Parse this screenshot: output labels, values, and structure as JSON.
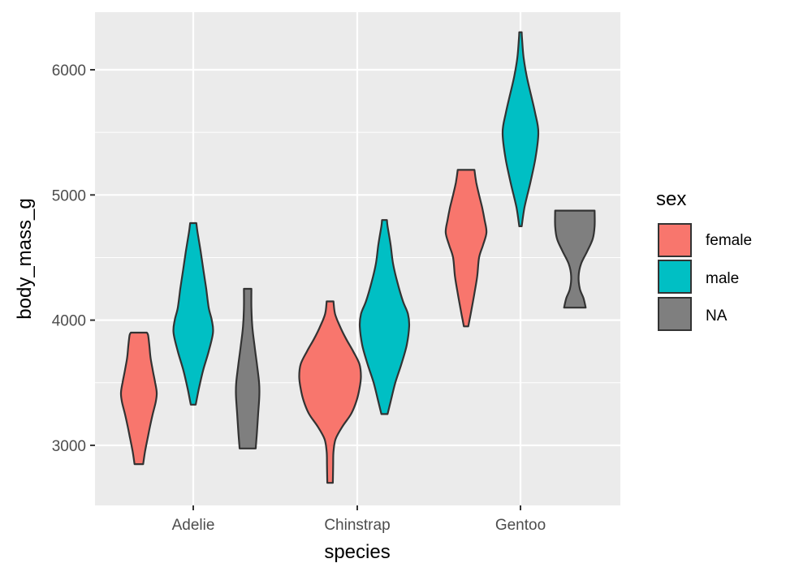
{
  "chart_data": {
    "type": "violin",
    "xlabel": "species",
    "ylabel": "body_mass_g",
    "categories": [
      "Adelie",
      "Chinstrap",
      "Gentoo"
    ],
    "ylim": [
      2520,
      6460
    ],
    "yticks": [
      3000,
      4000,
      5000,
      6000
    ],
    "grid": true,
    "legend": {
      "title": "sex",
      "position": "right",
      "entries": [
        {
          "label": "female",
          "color": "#F8766D"
        },
        {
          "label": "male",
          "color": "#00BFC4"
        },
        {
          "label": "NA",
          "color": "#7F7F7F"
        }
      ]
    },
    "series": [
      {
        "name": "female",
        "color": "#F8766D",
        "violins": [
          {
            "category": "Adelie",
            "min": 2850,
            "max": 3900,
            "profile": [
              [
                2850,
                0.14
              ],
              [
                2950,
                0.2
              ],
              [
                3050,
                0.28
              ],
              [
                3150,
                0.36
              ],
              [
                3250,
                0.45
              ],
              [
                3350,
                0.55
              ],
              [
                3420,
                0.58
              ],
              [
                3500,
                0.53
              ],
              [
                3600,
                0.45
              ],
              [
                3700,
                0.38
              ],
              [
                3800,
                0.34
              ],
              [
                3880,
                0.3
              ],
              [
                3900,
                0.26
              ]
            ]
          },
          {
            "category": "Chinstrap",
            "min": 2700,
            "max": 4150,
            "profile": [
              [
                2700,
                0.09
              ],
              [
                2850,
                0.1
              ],
              [
                2950,
                0.11
              ],
              [
                3050,
                0.18
              ],
              [
                3150,
                0.4
              ],
              [
                3250,
                0.68
              ],
              [
                3350,
                0.85
              ],
              [
                3450,
                0.95
              ],
              [
                3550,
                1.0
              ],
              [
                3650,
                0.95
              ],
              [
                3750,
                0.75
              ],
              [
                3850,
                0.52
              ],
              [
                3950,
                0.32
              ],
              [
                4050,
                0.16
              ],
              [
                4150,
                0.11
              ]
            ]
          },
          {
            "category": "Gentoo",
            "min": 3950,
            "max": 5200,
            "profile": [
              [
                3950,
                0.07
              ],
              [
                4050,
                0.15
              ],
              [
                4200,
                0.26
              ],
              [
                4350,
                0.36
              ],
              [
                4500,
                0.42
              ],
              [
                4600,
                0.55
              ],
              [
                4700,
                0.66
              ],
              [
                4800,
                0.6
              ],
              [
                4900,
                0.52
              ],
              [
                5000,
                0.42
              ],
              [
                5100,
                0.33
              ],
              [
                5200,
                0.27
              ]
            ]
          }
        ]
      },
      {
        "name": "male",
        "color": "#00BFC4",
        "violins": [
          {
            "category": "Adelie",
            "min": 3325,
            "max": 4775,
            "profile": [
              [
                3325,
                0.08
              ],
              [
                3450,
                0.18
              ],
              [
                3600,
                0.32
              ],
              [
                3750,
                0.5
              ],
              [
                3900,
                0.64
              ],
              [
                4000,
                0.6
              ],
              [
                4100,
                0.5
              ],
              [
                4250,
                0.42
              ],
              [
                4400,
                0.33
              ],
              [
                4550,
                0.24
              ],
              [
                4700,
                0.14
              ],
              [
                4775,
                0.1
              ]
            ]
          },
          {
            "category": "Chinstrap",
            "min": 3250,
            "max": 4800,
            "profile": [
              [
                3250,
                0.1
              ],
              [
                3350,
                0.2
              ],
              [
                3500,
                0.35
              ],
              [
                3650,
                0.55
              ],
              [
                3800,
                0.72
              ],
              [
                3950,
                0.8
              ],
              [
                4050,
                0.76
              ],
              [
                4150,
                0.6
              ],
              [
                4300,
                0.42
              ],
              [
                4450,
                0.28
              ],
              [
                4600,
                0.2
              ],
              [
                4750,
                0.1
              ],
              [
                4800,
                0.08
              ]
            ]
          },
          {
            "category": "Gentoo",
            "min": 4750,
            "max": 6300,
            "profile": [
              [
                4750,
                0.04
              ],
              [
                4900,
                0.13
              ],
              [
                5100,
                0.32
              ],
              [
                5300,
                0.49
              ],
              [
                5500,
                0.58
              ],
              [
                5650,
                0.48
              ],
              [
                5800,
                0.34
              ],
              [
                5950,
                0.2
              ],
              [
                6100,
                0.1
              ],
              [
                6250,
                0.05
              ],
              [
                6300,
                0.04
              ]
            ]
          }
        ]
      },
      {
        "name": "NA",
        "color": "#7F7F7F",
        "violins": [
          {
            "category": "Adelie",
            "min": 2975,
            "max": 4250,
            "profile": [
              [
                2975,
                0.26
              ],
              [
                3100,
                0.3
              ],
              [
                3250,
                0.34
              ],
              [
                3400,
                0.38
              ],
              [
                3500,
                0.37
              ],
              [
                3650,
                0.3
              ],
              [
                3800,
                0.22
              ],
              [
                3950,
                0.15
              ],
              [
                4100,
                0.12
              ],
              [
                4250,
                0.12
              ]
            ]
          },
          {
            "category": "Gentoo",
            "min": 4100,
            "max": 4875,
            "profile": [
              [
                4100,
                0.35
              ],
              [
                4175,
                0.28
              ],
              [
                4250,
                0.16
              ],
              [
                4350,
                0.12
              ],
              [
                4450,
                0.2
              ],
              [
                4550,
                0.4
              ],
              [
                4650,
                0.58
              ],
              [
                4750,
                0.64
              ],
              [
                4875,
                0.64
              ]
            ]
          }
        ]
      }
    ]
  }
}
